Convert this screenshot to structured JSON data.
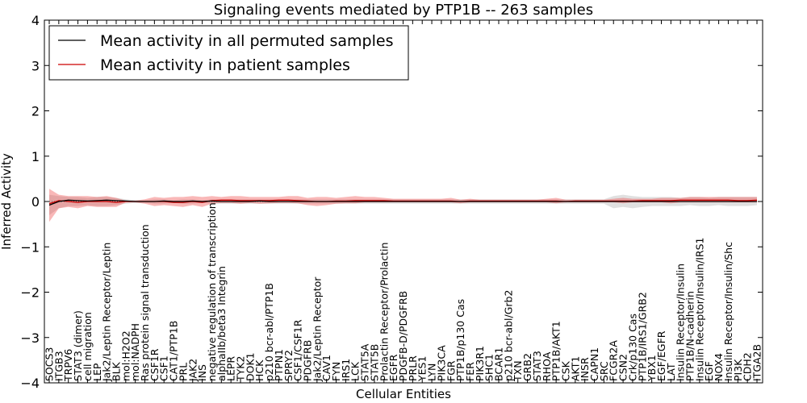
{
  "chart_data": {
    "type": "line",
    "title": "Signaling events mediated by PTP1B -- 263 samples",
    "xlabel": "Cellular Entities",
    "ylabel": "Inferred Activity",
    "ylim": [
      -4,
      4
    ],
    "yticks": [
      -4,
      -3,
      -2,
      -1,
      0,
      1,
      2,
      3,
      4
    ],
    "ytick_labels": [
      "−4",
      "−3",
      "−2",
      "−1",
      "0",
      "1",
      "2",
      "3",
      "4"
    ],
    "legend_position": "upper-left",
    "categories": [
      "SOCS3",
      "ITGB3",
      "TRPV6",
      "STAT3 (dimer)",
      "cell migration",
      "LEP",
      "Jak2/Leptin Receptor/Leptin",
      "BLK",
      "mol:H2O2",
      "mol:NADPH",
      "Ras protein signal transduction",
      "CSF1R",
      "CSF1",
      "CAT1/PTP1B",
      "PRL",
      "JAK2",
      "INS",
      "negative regulation of transcription",
      "alphaIIb/beta3 Integrin",
      "LEPR",
      "TYK2",
      "DOK1",
      "HCK",
      "p210 bcr-abl/PTP1B",
      "PTPN1",
      "SPRY2",
      "CSF1/CSF1R",
      "PDGFRB",
      "Jak2/Leptin Receptor",
      "CAV1",
      "FYN",
      "IRS1",
      "LCK",
      "STAT5A",
      "STAT5B",
      "Prolactin Receptor/Prolactin",
      "EGFR",
      "PDGFB-D/PDGFRB",
      "PRLR",
      "YES1",
      "LYN",
      "PIK3CA",
      "FGR",
      "PTP1B/p130 Cas",
      "FER",
      "PIK3R1",
      "SHC1",
      "BCAR1",
      "p210 bcr-abl/Grb2",
      "TXN",
      "GRB2",
      "STAT3",
      "RHOA",
      "PTP1B/AKT1",
      "CSK",
      "AKT1",
      "INSR",
      "CAPN1",
      "SRC",
      "FCGR2A",
      "CSN2",
      "Crk/p130 Cas",
      "PTP1B/IRS1/GRB2",
      "YBX1",
      "EGF/EGFR",
      "LAT",
      "Insulin Receptor/Insulin",
      "PTP1B/N-cadherin",
      "Insulin Receptor/Insulin/IRS1",
      "EGF",
      "NOX4",
      "Insulin Receptor/Insulin/Shc",
      "PI3K",
      "CDH2",
      "ITGA2B"
    ],
    "series": [
      {
        "name": "Mean activity in all permuted samples",
        "color": "#000000",
        "values": [
          -0.08,
          0.0,
          0.03,
          0.02,
          0.01,
          0.02,
          0.03,
          0.02,
          0.01,
          0.0,
          0.0,
          0.0,
          0.01,
          0.0,
          0.0,
          0.01,
          0.0,
          0.01,
          0.0,
          0.0,
          0.0,
          0.0,
          0.01,
          0.0,
          0.0,
          0.0,
          0.0,
          0.0,
          0.0,
          0.0,
          0.0,
          0.0,
          0.0,
          0.0,
          0.0,
          0.0,
          0.0,
          0.0,
          0.0,
          0.0,
          0.0,
          0.0,
          0.0,
          0.0,
          0.0,
          0.0,
          0.0,
          0.0,
          0.0,
          0.0,
          0.0,
          0.0,
          0.0,
          0.0,
          0.0,
          0.0,
          0.0,
          0.0,
          0.0,
          0.0,
          0.0,
          0.0,
          0.0,
          0.0,
          0.0,
          0.0,
          0.0,
          0.0,
          0.0,
          0.0,
          0.0,
          0.0,
          0.0,
          0.0,
          0.0
        ],
        "band_low": [
          -0.3,
          -0.15,
          -0.1,
          -0.1,
          -0.08,
          -0.1,
          -0.1,
          -0.08,
          -0.05,
          -0.03,
          -0.03,
          -0.05,
          -0.05,
          -0.03,
          -0.05,
          -0.05,
          -0.03,
          -0.05,
          -0.05,
          -0.05,
          -0.05,
          -0.05,
          -0.05,
          -0.05,
          -0.05,
          -0.05,
          -0.05,
          -0.05,
          -0.05,
          -0.05,
          -0.05,
          -0.05,
          -0.05,
          -0.05,
          -0.05,
          -0.05,
          -0.05,
          -0.05,
          -0.05,
          -0.05,
          -0.05,
          -0.05,
          -0.05,
          -0.05,
          -0.05,
          -0.05,
          -0.05,
          -0.05,
          -0.05,
          -0.05,
          -0.05,
          -0.05,
          -0.05,
          -0.05,
          -0.05,
          -0.05,
          -0.05,
          -0.05,
          -0.05,
          -0.15,
          -0.12,
          -0.15,
          -0.12,
          -0.1,
          -0.1,
          -0.1,
          -0.1,
          -0.08,
          -0.1,
          -0.1,
          -0.08,
          -0.1,
          -0.1,
          -0.1,
          -0.08
        ],
        "band_high": [
          0.15,
          0.12,
          0.1,
          0.1,
          0.08,
          0.1,
          0.1,
          0.08,
          0.05,
          0.03,
          0.03,
          0.05,
          0.05,
          0.03,
          0.05,
          0.05,
          0.03,
          0.05,
          0.05,
          0.05,
          0.05,
          0.05,
          0.05,
          0.05,
          0.05,
          0.05,
          0.05,
          0.05,
          0.05,
          0.05,
          0.05,
          0.05,
          0.05,
          0.05,
          0.05,
          0.05,
          0.05,
          0.05,
          0.05,
          0.05,
          0.05,
          0.05,
          0.05,
          0.05,
          0.05,
          0.05,
          0.05,
          0.05,
          0.05,
          0.05,
          0.05,
          0.05,
          0.05,
          0.05,
          0.05,
          0.05,
          0.05,
          0.05,
          0.05,
          0.12,
          0.15,
          0.12,
          0.1,
          0.1,
          0.1,
          0.1,
          0.08,
          0.1,
          0.1,
          0.08,
          0.1,
          0.1,
          0.1,
          0.1,
          0.1
        ]
      },
      {
        "name": "Mean activity in patient samples",
        "color": "#cc0000",
        "values": [
          -0.05,
          0.02,
          0.0,
          -0.02,
          0.0,
          0.0,
          0.0,
          -0.02,
          0.0,
          0.0,
          0.0,
          0.0,
          0.0,
          -0.02,
          -0.02,
          0.0,
          -0.02,
          0.02,
          0.03,
          0.03,
          0.02,
          0.02,
          0.02,
          0.02,
          0.03,
          0.03,
          0.02,
          0.01,
          0.0,
          0.0,
          0.01,
          0.01,
          0.02,
          0.02,
          0.02,
          0.02,
          0.01,
          0.01,
          0.01,
          0.01,
          0.01,
          0.01,
          0.01,
          0.0,
          0.01,
          0.01,
          0.01,
          0.01,
          0.01,
          0.01,
          0.01,
          0.01,
          0.01,
          0.01,
          0.0,
          0.01,
          0.01,
          0.01,
          0.01,
          0.01,
          0.01,
          0.01,
          0.02,
          0.02,
          0.02,
          0.02,
          0.03,
          0.03,
          0.03,
          0.03,
          0.03,
          0.03,
          0.02,
          0.02,
          0.03
        ],
        "band_low": [
          -0.45,
          -0.15,
          -0.12,
          -0.15,
          -0.1,
          -0.12,
          -0.12,
          -0.12,
          -0.02,
          -0.02,
          -0.05,
          -0.1,
          -0.08,
          -0.1,
          -0.12,
          -0.08,
          -0.12,
          -0.05,
          -0.03,
          -0.03,
          -0.05,
          -0.03,
          -0.05,
          -0.04,
          -0.03,
          -0.03,
          -0.04,
          -0.08,
          -0.1,
          -0.08,
          -0.05,
          -0.04,
          -0.04,
          -0.02,
          -0.02,
          -0.02,
          -0.02,
          -0.02,
          -0.02,
          -0.02,
          -0.02,
          -0.02,
          -0.02,
          -0.04,
          -0.02,
          -0.02,
          -0.02,
          -0.02,
          -0.02,
          -0.02,
          -0.02,
          -0.02,
          -0.02,
          -0.04,
          -0.02,
          -0.02,
          -0.02,
          -0.02,
          -0.02,
          -0.02,
          -0.04,
          -0.02,
          -0.02,
          -0.02,
          -0.02,
          -0.04,
          -0.02,
          -0.02,
          -0.02,
          -0.02,
          -0.02,
          -0.02,
          -0.02,
          -0.02,
          -0.02
        ],
        "band_high": [
          0.28,
          0.15,
          0.12,
          0.12,
          0.12,
          0.1,
          0.12,
          0.08,
          0.02,
          0.02,
          0.05,
          0.1,
          0.08,
          0.1,
          0.1,
          0.12,
          0.1,
          0.12,
          0.1,
          0.12,
          0.12,
          0.1,
          0.1,
          0.1,
          0.1,
          0.12,
          0.12,
          0.08,
          0.1,
          0.1,
          0.08,
          0.1,
          0.12,
          0.1,
          0.1,
          0.08,
          0.06,
          0.06,
          0.06,
          0.06,
          0.06,
          0.06,
          0.08,
          0.04,
          0.06,
          0.04,
          0.04,
          0.04,
          0.04,
          0.04,
          0.04,
          0.04,
          0.06,
          0.08,
          0.04,
          0.04,
          0.04,
          0.04,
          0.04,
          0.06,
          0.08,
          0.06,
          0.06,
          0.06,
          0.08,
          0.08,
          0.08,
          0.1,
          0.1,
          0.1,
          0.1,
          0.1,
          0.1,
          0.1,
          0.1
        ]
      }
    ]
  }
}
